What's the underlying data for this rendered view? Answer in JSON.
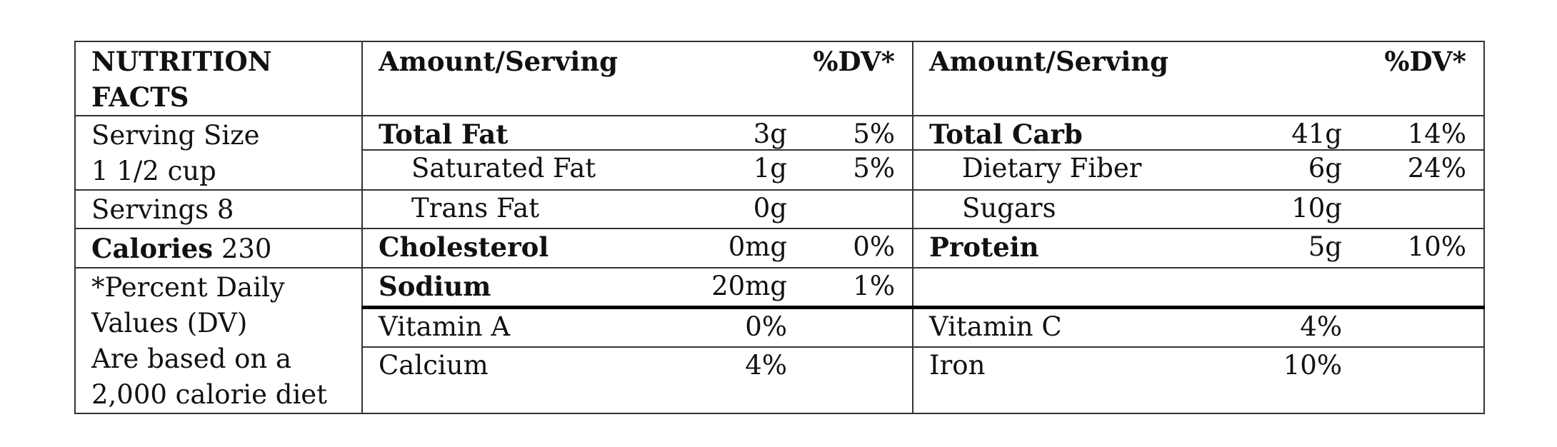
{
  "header": {
    "title_line1": "NUTRITION",
    "title_line2": "FACTS",
    "col1_label": "Amount/Serving",
    "col1_dv": "%DV*",
    "col2_label": "Amount/Serving",
    "col2_dv": "%DV*"
  },
  "left_info": {
    "serving_size_line1": "Serving Size",
    "serving_size_line2": "1 1/2 cup",
    "servings": "Servings 8",
    "calories_label": "Calories",
    "calories_value": "230",
    "note_line1": "*Percent Daily",
    "note_line2": "Values (DV)",
    "note_line3": "Are based on a",
    "note_line4": "2,000 calorie diet"
  },
  "nutrients_left": [
    {
      "name": "Total Fat",
      "amount": "3g",
      "dv": "5%"
    },
    {
      "name": "Saturated Fat",
      "amount": "1g",
      "dv": "5%"
    },
    {
      "name": "Trans Fat",
      "amount": "0g",
      "dv": ""
    },
    {
      "name": "Cholesterol",
      "amount": "0mg",
      "dv": "0%"
    },
    {
      "name": "Sodium",
      "amount": "20mg",
      "dv": "1%"
    }
  ],
  "nutrients_right": [
    {
      "name": "Total Carb",
      "amount": "41g",
      "dv": "14%"
    },
    {
      "name": "Dietary Fiber",
      "amount": "6g",
      "dv": "24%"
    },
    {
      "name": "Sugars",
      "amount": "10g",
      "dv": ""
    },
    {
      "name": "Protein",
      "amount": "5g",
      "dv": "10%"
    }
  ],
  "vitamins_left": [
    {
      "name": "Vitamin A",
      "dv": "0%"
    },
    {
      "name": "Calcium",
      "dv": "4%"
    }
  ],
  "vitamins_right": [
    {
      "name": "Vitamin C",
      "dv": "4%"
    },
    {
      "name": "Iron",
      "dv": "10%"
    }
  ]
}
